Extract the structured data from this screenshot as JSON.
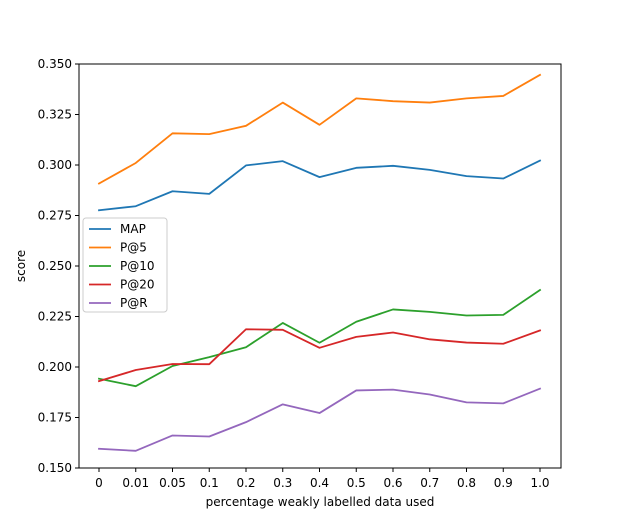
{
  "chart_data": {
    "type": "line",
    "title": "",
    "xlabel": "percentage weakly labelled data used",
    "ylabel": "score",
    "categories": [
      "0",
      "0.01",
      "0.05",
      "0.1",
      "0.2",
      "0.3",
      "0.4",
      "0.5",
      "0.6",
      "0.7",
      "0.8",
      "0.9",
      "1.0"
    ],
    "ylim": [
      0.15,
      0.35
    ],
    "yticks": [
      "0.150",
      "0.175",
      "0.200",
      "0.225",
      "0.250",
      "0.275",
      "0.300",
      "0.325",
      "0.350"
    ],
    "grid": false,
    "legend_position": "center-left",
    "series": [
      {
        "name": "MAP",
        "color": "#1f77b4",
        "values": [
          0.2776,
          0.2796,
          0.287,
          0.2857,
          0.2998,
          0.3019,
          0.294,
          0.2986,
          0.2996,
          0.2976,
          0.2945,
          0.2933,
          0.3022
        ]
      },
      {
        "name": "P@5",
        "color": "#ff7f0e",
        "values": [
          0.2908,
          0.301,
          0.3157,
          0.3153,
          0.3194,
          0.3309,
          0.3199,
          0.333,
          0.3316,
          0.3309,
          0.333,
          0.3342,
          0.3446
        ]
      },
      {
        "name": "P@10",
        "color": "#2ca02c",
        "values": [
          0.1942,
          0.1905,
          0.2005,
          0.2049,
          0.2098,
          0.2218,
          0.212,
          0.2224,
          0.2285,
          0.2273,
          0.2255,
          0.2258,
          0.2381
        ]
      },
      {
        "name": "P@20",
        "color": "#d62728",
        "values": [
          0.193,
          0.1985,
          0.2015,
          0.2014,
          0.2187,
          0.2184,
          0.2095,
          0.2149,
          0.2171,
          0.2137,
          0.2121,
          0.2115,
          0.2181
        ]
      },
      {
        "name": "P@R",
        "color": "#9467bd",
        "values": [
          0.1595,
          0.1585,
          0.1661,
          0.1656,
          0.1727,
          0.1815,
          0.1772,
          0.1884,
          0.1888,
          0.1864,
          0.1825,
          0.182,
          0.1893
        ]
      }
    ]
  }
}
